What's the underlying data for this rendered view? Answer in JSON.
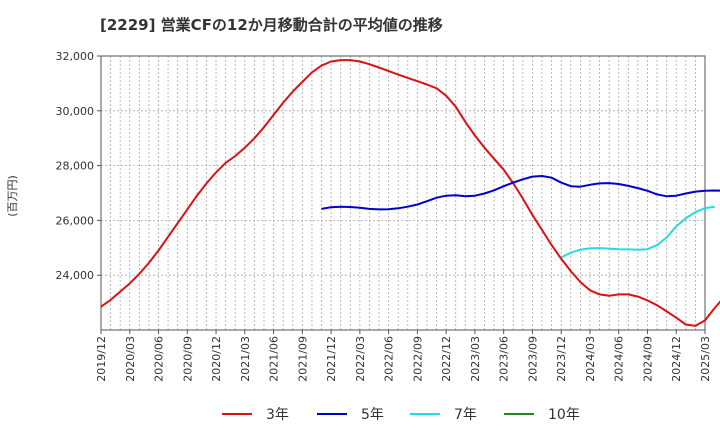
{
  "chart_data": {
    "type": "line",
    "title": "[2229]  営業CFの12か月移動合計の平均値の推移",
    "ylabel": "(百万円)",
    "xlabel": "",
    "ylim": [
      22000,
      32000
    ],
    "y_ticks": [
      24000,
      26000,
      28000,
      30000,
      32000
    ],
    "y_tick_labels": [
      "24,000",
      "26,000",
      "28,000",
      "30,000",
      "32,000"
    ],
    "x_tick_labels": [
      "2019/12",
      "2020/03",
      "2020/06",
      "2020/09",
      "2020/12",
      "2021/03",
      "2021/06",
      "2021/09",
      "2021/12",
      "2022/03",
      "2022/06",
      "2022/09",
      "2022/12",
      "2023/03",
      "2023/06",
      "2023/09",
      "2023/12",
      "2024/03",
      "2024/06",
      "2024/09",
      "2024/12",
      "2025/03"
    ],
    "grid": true,
    "legend_position": "bottom",
    "series": [
      {
        "name": "3年",
        "color": "#dd1111",
        "start_month_index": 0,
        "values": [
          22850,
          23100,
          23400,
          23700,
          24050,
          24450,
          24900,
          25400,
          25900,
          26400,
          26900,
          27350,
          27750,
          28100,
          28350,
          28650,
          29000,
          29400,
          29850,
          30300,
          30700,
          31050,
          31400,
          31650,
          31800,
          31850,
          31850,
          31800,
          31700,
          31580,
          31450,
          31320,
          31200,
          31080,
          30960,
          30820,
          30550,
          30150,
          29600,
          29100,
          28650,
          28250,
          27850,
          27350,
          26800,
          26200,
          25650,
          25100,
          24600,
          24150,
          23750,
          23450,
          23300,
          23250,
          23300,
          23300,
          23220,
          23080,
          22900,
          22680,
          22450,
          22200,
          22150,
          22350,
          22800,
          23200,
          23500,
          23700,
          23820
        ]
      },
      {
        "name": "5年",
        "color": "#0000cc",
        "start_month_index": 23,
        "values": [
          26420,
          26480,
          26500,
          26490,
          26460,
          26420,
          26400,
          26410,
          26440,
          26500,
          26580,
          26700,
          26830,
          26900,
          26920,
          26880,
          26900,
          26980,
          27100,
          27250,
          27380,
          27500,
          27600,
          27620,
          27560,
          27380,
          27250,
          27230,
          27300,
          27350,
          27360,
          27330,
          27260,
          27180,
          27080,
          26950,
          26880,
          26900,
          26980,
          27050,
          27080,
          27090,
          27080
        ]
      },
      {
        "name": "7年",
        "color": "#22dddd",
        "start_month_index": 48,
        "values": [
          24650,
          24820,
          24930,
          24980,
          24990,
          24970,
          24950,
          24940,
          24930,
          24950,
          25100,
          25380,
          25780,
          26080,
          26300,
          26450,
          26500
        ]
      },
      {
        "name": "10年",
        "color": "#228822",
        "start_month_index": 0,
        "values": []
      }
    ]
  }
}
